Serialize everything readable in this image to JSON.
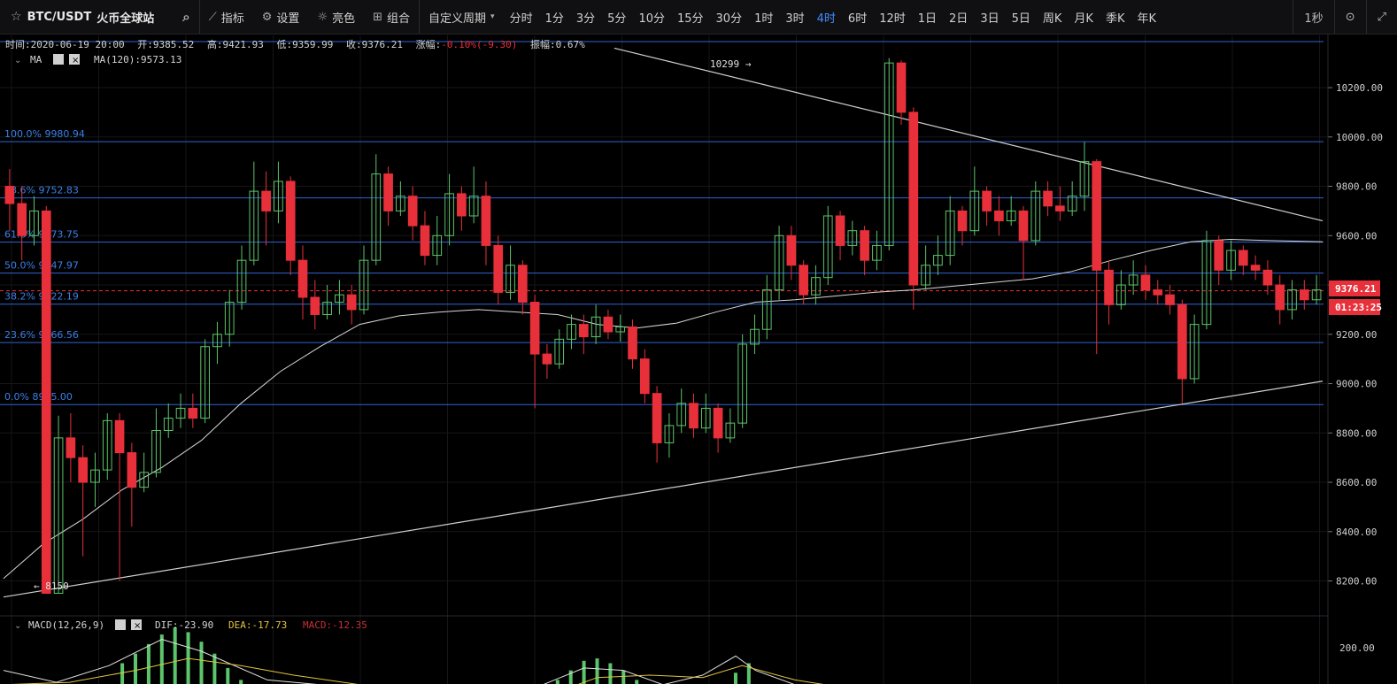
{
  "toolbar": {
    "symbol": "BTC/USDT",
    "venue": "火币全球站",
    "tools": [
      "指标",
      "设置",
      "亮色",
      "组合"
    ],
    "custom_period": "自定义周期",
    "periods": [
      "分时",
      "1分",
      "3分",
      "5分",
      "10分",
      "15分",
      "30分",
      "1时",
      "3时",
      "4时",
      "6时",
      "12时",
      "1日",
      "2日",
      "3日",
      "5日",
      "周K",
      "月K",
      "季K",
      "年K"
    ],
    "active_period": "4时",
    "right_interval": "1秒"
  },
  "info_bar": {
    "time_label": "时间:",
    "time": "2020-06-19 20:00",
    "open_label": "开:",
    "open": "9385.52",
    "high_label": "高:",
    "high": "9421.93",
    "low_label": "低:",
    "low": "9359.99",
    "close_label": "收:",
    "close": "9376.21",
    "change_label": "涨幅:",
    "change": "-0.10%(-9.30)",
    "amp_label": "振幅:",
    "amp": "0.67%"
  },
  "ma_legend": {
    "name": "MA",
    "ma120": "MA(120):9573.13"
  },
  "macd_legend": {
    "name": "MACD(12,26,9)",
    "dif": "DIF:-23.90",
    "dea": "DEA:-17.73",
    "macd": "MACD:-12.35"
  },
  "price_axis": {
    "ticks": [
      "10200.00",
      "10000.00",
      "9800.00",
      "9600.00",
      "9400.00",
      "9200.00",
      "9000.00",
      "8800.00",
      "8600.00",
      "8400.00",
      "8200.00"
    ],
    "current_price": "9376.21",
    "countdown": "01:23:25",
    "macd_tick": "200.00"
  },
  "fib_levels": [
    {
      "label": "100.0% 9980.94",
      "price": 9980.94
    },
    {
      "label": "78.6% 9752.83",
      "price": 9752.83
    },
    {
      "label": "61.8% 9573.75",
      "price": 9573.75
    },
    {
      "label": "50.0% 9447.97",
      "price": 9447.97
    },
    {
      "label": "38.2% 9322.19",
      "price": 9322.19
    },
    {
      "label": "23.6% 9166.56",
      "price": 9166.56
    },
    {
      "label": "0.0% 8915.00",
      "price": 8915.0
    }
  ],
  "annotations": {
    "high_mark": "10299",
    "low_mark": "8150"
  },
  "colors": {
    "up": "#5cc46a",
    "down": "#e8303a",
    "fib": "#2f64d6",
    "accent": "#3f8cff",
    "ma": "#d8d8d8",
    "dea": "#e3c341"
  },
  "chart_data": {
    "type": "candlestick",
    "title": "BTC/USDT 4H",
    "ylim": [
      8080,
      10340
    ],
    "fib_anchor": {
      "high": 9980.94,
      "low": 8915.0
    },
    "trendlines": [
      {
        "name": "resistance",
        "from": [
          0.463,
          10360
        ],
        "to": [
          1.0,
          9660
        ]
      },
      {
        "name": "support",
        "from": [
          0.0,
          8135
        ],
        "to": [
          1.0,
          9010
        ]
      }
    ],
    "ma120": [
      [
        0,
        8210
      ],
      [
        0.03,
        8350
      ],
      [
        0.06,
        8450
      ],
      [
        0.09,
        8570
      ],
      [
        0.12,
        8660
      ],
      [
        0.15,
        8770
      ],
      [
        0.18,
        8920
      ],
      [
        0.21,
        9050
      ],
      [
        0.24,
        9150
      ],
      [
        0.27,
        9240
      ],
      [
        0.3,
        9275
      ],
      [
        0.33,
        9290
      ],
      [
        0.36,
        9300
      ],
      [
        0.39,
        9290
      ],
      [
        0.42,
        9280
      ],
      [
        0.45,
        9240
      ],
      [
        0.48,
        9225
      ],
      [
        0.51,
        9245
      ],
      [
        0.54,
        9290
      ],
      [
        0.57,
        9330
      ],
      [
        0.6,
        9340
      ],
      [
        0.63,
        9355
      ],
      [
        0.66,
        9370
      ],
      [
        0.69,
        9380
      ],
      [
        0.72,
        9395
      ],
      [
        0.75,
        9410
      ],
      [
        0.78,
        9425
      ],
      [
        0.81,
        9455
      ],
      [
        0.84,
        9500
      ],
      [
        0.87,
        9540
      ],
      [
        0.9,
        9575
      ],
      [
        0.93,
        9585
      ],
      [
        0.96,
        9580
      ],
      [
        1.0,
        9575
      ]
    ],
    "candles": [
      [
        9800,
        9730,
        9870,
        9620
      ],
      [
        9730,
        9600,
        9800,
        9500
      ],
      [
        9600,
        9700,
        9760,
        9560
      ],
      [
        9700,
        8150,
        9720,
        8150
      ],
      [
        8150,
        8780,
        8870,
        8150
      ],
      [
        8780,
        8700,
        8880,
        8600
      ],
      [
        8700,
        8600,
        8750,
        8300
      ],
      [
        8600,
        8650,
        8720,
        8500
      ],
      [
        8650,
        8850,
        8880,
        8610
      ],
      [
        8850,
        8720,
        8880,
        8200
      ],
      [
        8720,
        8580,
        8760,
        8420
      ],
      [
        8580,
        8640,
        8720,
        8560
      ],
      [
        8640,
        8810,
        8900,
        8620
      ],
      [
        8810,
        8860,
        8920,
        8780
      ],
      [
        8860,
        8900,
        8960,
        8820
      ],
      [
        8900,
        8860,
        8960,
        8820
      ],
      [
        8860,
        9150,
        9180,
        8840
      ],
      [
        9150,
        9200,
        9250,
        9080
      ],
      [
        9200,
        9330,
        9380,
        9150
      ],
      [
        9330,
        9500,
        9560,
        9300
      ],
      [
        9500,
        9780,
        9900,
        9480
      ],
      [
        9780,
        9700,
        9860,
        9560
      ],
      [
        9700,
        9820,
        9900,
        9650
      ],
      [
        9820,
        9500,
        9840,
        9440
      ],
      [
        9500,
        9350,
        9560,
        9260
      ],
      [
        9350,
        9280,
        9420,
        9220
      ],
      [
        9280,
        9330,
        9400,
        9260
      ],
      [
        9330,
        9360,
        9420,
        9280
      ],
      [
        9360,
        9300,
        9400,
        9240
      ],
      [
        9300,
        9500,
        9560,
        9280
      ],
      [
        9500,
        9850,
        9930,
        9480
      ],
      [
        9850,
        9700,
        9880,
        9640
      ],
      [
        9700,
        9760,
        9820,
        9680
      ],
      [
        9760,
        9640,
        9800,
        9580
      ],
      [
        9640,
        9520,
        9700,
        9480
      ],
      [
        9520,
        9600,
        9680,
        9480
      ],
      [
        9600,
        9770,
        9850,
        9560
      ],
      [
        9770,
        9680,
        9800,
        9620
      ],
      [
        9680,
        9760,
        9880,
        9650
      ],
      [
        9760,
        9560,
        9820,
        9480
      ],
      [
        9560,
        9370,
        9600,
        9320
      ],
      [
        9370,
        9480,
        9560,
        9340
      ],
      [
        9480,
        9330,
        9500,
        9280
      ],
      [
        9330,
        9120,
        9360,
        8900
      ],
      [
        9120,
        9080,
        9160,
        9020
      ],
      [
        9080,
        9180,
        9220,
        9060
      ],
      [
        9180,
        9240,
        9280,
        9140
      ],
      [
        9240,
        9190,
        9280,
        9120
      ],
      [
        9190,
        9270,
        9320,
        9160
      ],
      [
        9270,
        9210,
        9300,
        9180
      ],
      [
        9210,
        9230,
        9280,
        9170
      ],
      [
        9230,
        9100,
        9260,
        9060
      ],
      [
        9100,
        8960,
        9140,
        8920
      ],
      [
        8960,
        8760,
        8990,
        8680
      ],
      [
        8760,
        8830,
        8880,
        8700
      ],
      [
        8830,
        8920,
        8980,
        8800
      ],
      [
        8920,
        8820,
        8960,
        8780
      ],
      [
        8820,
        8900,
        8960,
        8800
      ],
      [
        8900,
        8780,
        8920,
        8720
      ],
      [
        8780,
        8840,
        8900,
        8760
      ],
      [
        8840,
        9160,
        9200,
        8820
      ],
      [
        9160,
        9220,
        9280,
        9120
      ],
      [
        9220,
        9380,
        9440,
        9180
      ],
      [
        9380,
        9600,
        9640,
        9340
      ],
      [
        9600,
        9480,
        9640,
        9420
      ],
      [
        9480,
        9360,
        9500,
        9320
      ],
      [
        9360,
        9430,
        9480,
        9320
      ],
      [
        9430,
        9680,
        9720,
        9400
      ],
      [
        9680,
        9560,
        9700,
        9500
      ],
      [
        9560,
        9620,
        9660,
        9520
      ],
      [
        9620,
        9500,
        9640,
        9440
      ],
      [
        9500,
        9560,
        9620,
        9460
      ],
      [
        9560,
        10300,
        10320,
        9540
      ],
      [
        10300,
        10100,
        10310,
        10050
      ],
      [
        10100,
        9400,
        10120,
        9300
      ],
      [
        9400,
        9480,
        9560,
        9380
      ],
      [
        9480,
        9520,
        9600,
        9440
      ],
      [
        9520,
        9700,
        9760,
        9480
      ],
      [
        9700,
        9620,
        9720,
        9560
      ],
      [
        9620,
        9780,
        9880,
        9600
      ],
      [
        9780,
        9700,
        9800,
        9640
      ],
      [
        9700,
        9660,
        9760,
        9600
      ],
      [
        9660,
        9700,
        9760,
        9640
      ],
      [
        9700,
        9580,
        9720,
        9420
      ],
      [
        9580,
        9780,
        9820,
        9560
      ],
      [
        9780,
        9720,
        9820,
        9680
      ],
      [
        9720,
        9700,
        9800,
        9660
      ],
      [
        9700,
        9760,
        9820,
        9680
      ],
      [
        9760,
        9900,
        9980,
        9700
      ],
      [
        9900,
        9460,
        9910,
        9120
      ],
      [
        9460,
        9320,
        9500,
        9240
      ],
      [
        9320,
        9400,
        9460,
        9300
      ],
      [
        9400,
        9440,
        9500,
        9360
      ],
      [
        9440,
        9380,
        9480,
        9340
      ],
      [
        9380,
        9360,
        9420,
        9320
      ],
      [
        9360,
        9320,
        9400,
        9280
      ],
      [
        9320,
        9020,
        9340,
        8920
      ],
      [
        9020,
        9240,
        9280,
        9000
      ],
      [
        9240,
        9580,
        9620,
        9220
      ],
      [
        9580,
        9460,
        9600,
        9400
      ],
      [
        9460,
        9540,
        9580,
        9420
      ],
      [
        9540,
        9480,
        9560,
        9440
      ],
      [
        9480,
        9460,
        9520,
        9420
      ],
      [
        9460,
        9400,
        9500,
        9360
      ],
      [
        9400,
        9300,
        9440,
        9240
      ],
      [
        9300,
        9380,
        9420,
        9260
      ],
      [
        9380,
        9340,
        9420,
        9300
      ],
      [
        9340,
        9380,
        9440,
        9320
      ]
    ],
    "macd": {
      "ylabel": "",
      "visible_top_value": 200,
      "hist": [
        [
          0.09,
          150
        ],
        [
          0.1,
          190
        ],
        [
          0.11,
          230
        ],
        [
          0.12,
          270
        ],
        [
          0.13,
          300
        ],
        [
          0.14,
          280
        ],
        [
          0.15,
          240
        ],
        [
          0.16,
          190
        ],
        [
          0.17,
          130
        ],
        [
          0.18,
          80
        ],
        [
          0.19,
          40
        ],
        [
          0.42,
          80
        ],
        [
          0.43,
          120
        ],
        [
          0.44,
          160
        ],
        [
          0.45,
          170
        ],
        [
          0.46,
          150
        ],
        [
          0.47,
          120
        ],
        [
          0.48,
          80
        ],
        [
          0.49,
          40
        ],
        [
          0.545,
          60
        ],
        [
          0.555,
          110
        ],
        [
          0.565,
          150
        ]
      ],
      "dif": [
        [
          0,
          120
        ],
        [
          0.04,
          70
        ],
        [
          0.08,
          140
        ],
        [
          0.12,
          250
        ],
        [
          0.15,
          200
        ],
        [
          0.2,
          80
        ],
        [
          0.24,
          60
        ],
        [
          0.28,
          20
        ],
        [
          0.3,
          -40
        ],
        [
          0.35,
          -60
        ],
        [
          0.4,
          40
        ],
        [
          0.44,
          130
        ],
        [
          0.47,
          120
        ],
        [
          0.5,
          60
        ],
        [
          0.53,
          100
        ],
        [
          0.555,
          180
        ],
        [
          0.57,
          120
        ],
        [
          0.62,
          20
        ],
        [
          0.7,
          -30
        ],
        [
          0.8,
          -10
        ],
        [
          0.9,
          -20
        ],
        [
          1.0,
          -24
        ]
      ],
      "dea": [
        [
          0,
          60
        ],
        [
          0.05,
          70
        ],
        [
          0.1,
          120
        ],
        [
          0.14,
          170
        ],
        [
          0.18,
          140
        ],
        [
          0.22,
          100
        ],
        [
          0.27,
          60
        ],
        [
          0.31,
          10
        ],
        [
          0.36,
          -20
        ],
        [
          0.41,
          10
        ],
        [
          0.45,
          90
        ],
        [
          0.49,
          100
        ],
        [
          0.53,
          90
        ],
        [
          0.56,
          140
        ],
        [
          0.6,
          80
        ],
        [
          0.68,
          10
        ],
        [
          0.78,
          -10
        ],
        [
          0.9,
          -15
        ],
        [
          1.0,
          -18
        ]
      ]
    }
  }
}
